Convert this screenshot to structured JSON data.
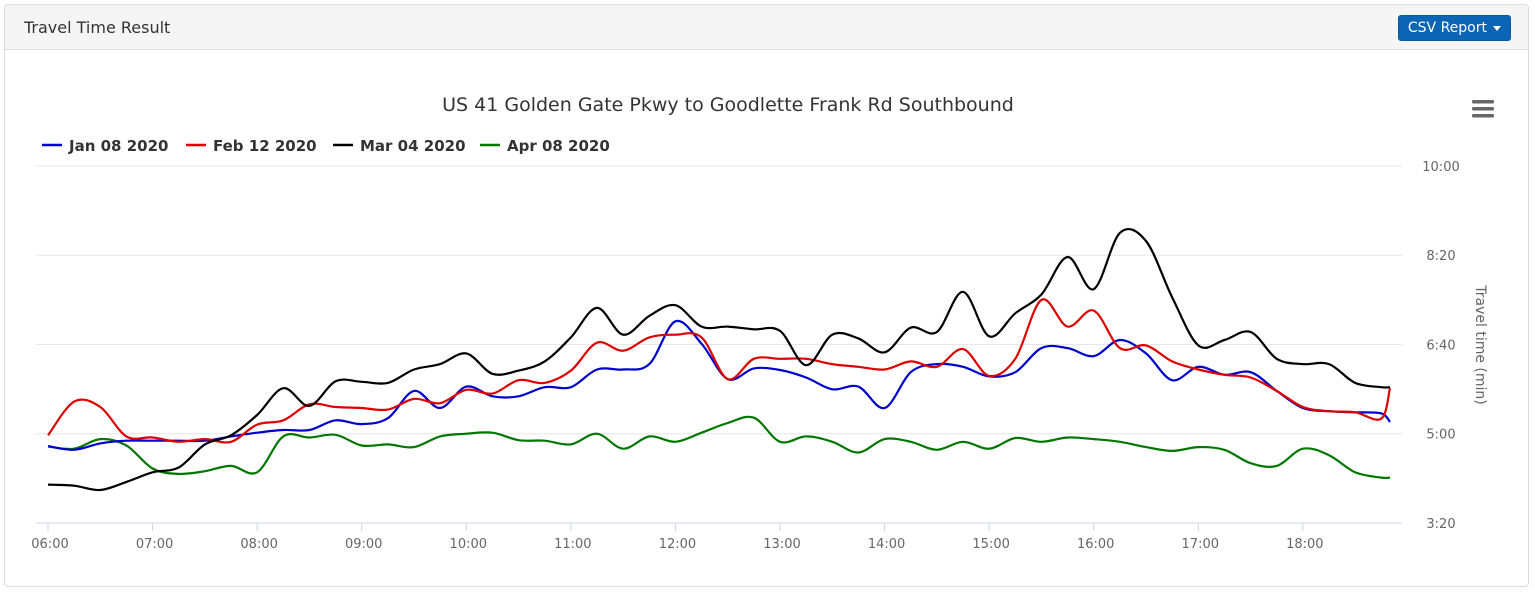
{
  "panel": {
    "title": "Travel Time Result",
    "csv_label": "CSV Report"
  },
  "chart_data": {
    "type": "line",
    "title": "US 41 Golden Gate Pkwy to Goodlette Frank Rd Southbound",
    "xlabel": "",
    "ylabel": "Travel time (min)",
    "x_ticks": [
      "06:00",
      "07:00",
      "08:00",
      "09:00",
      "10:00",
      "11:00",
      "12:00",
      "13:00",
      "14:00",
      "15:00",
      "16:00",
      "17:00",
      "18:00"
    ],
    "y_ticks": [
      "3:20",
      "5:00",
      "6:40",
      "8:20",
      "10:00"
    ],
    "y_range_minutes": [
      3.333,
      10.0
    ],
    "x_range": [
      "06:00",
      "18:50"
    ],
    "legend_position": "top-left",
    "grid": "horizontal",
    "series": [
      {
        "name": "Jan 08 2020",
        "color": "#0000cc",
        "x": [
          "06:00",
          "06:15",
          "06:30",
          "06:45",
          "07:00",
          "07:15",
          "07:30",
          "07:45",
          "08:00",
          "08:15",
          "08:30",
          "08:45",
          "09:00",
          "09:15",
          "09:30",
          "09:45",
          "10:00",
          "10:15",
          "10:30",
          "10:45",
          "11:00",
          "11:15",
          "11:30",
          "11:45",
          "12:00",
          "12:15",
          "12:30",
          "12:45",
          "13:00",
          "13:15",
          "13:30",
          "13:45",
          "14:00",
          "14:15",
          "14:30",
          "14:45",
          "15:00",
          "15:15",
          "15:30",
          "15:45",
          "16:00",
          "16:15",
          "16:30",
          "16:45",
          "17:00",
          "17:15",
          "17:30",
          "17:45",
          "18:00",
          "18:15",
          "18:30",
          "18:45",
          "18:50"
        ],
        "values": [
          4.77,
          4.7,
          4.82,
          4.87,
          4.87,
          4.87,
          4.87,
          4.95,
          5.02,
          5.07,
          5.07,
          5.25,
          5.18,
          5.29,
          5.8,
          5.48,
          5.88,
          5.7,
          5.7,
          5.87,
          5.87,
          6.2,
          6.2,
          6.3,
          7.1,
          6.68,
          6.02,
          6.22,
          6.19,
          6.05,
          5.83,
          5.88,
          5.48,
          6.15,
          6.3,
          6.25,
          6.07,
          6.15,
          6.6,
          6.6,
          6.45,
          6.75,
          6.5,
          6.0,
          6.25,
          6.1,
          6.15,
          5.8,
          5.48,
          5.42,
          5.4,
          5.38,
          5.22
        ]
      },
      {
        "name": "Feb 12 2020",
        "color": "#dd0000",
        "x": [
          "06:00",
          "06:15",
          "06:30",
          "06:45",
          "07:00",
          "07:15",
          "07:30",
          "07:45",
          "08:00",
          "08:15",
          "08:30",
          "08:45",
          "09:00",
          "09:15",
          "09:30",
          "09:45",
          "10:00",
          "10:15",
          "10:30",
          "10:45",
          "11:00",
          "11:15",
          "11:30",
          "11:45",
          "12:00",
          "12:15",
          "12:30",
          "12:45",
          "13:00",
          "13:15",
          "13:30",
          "13:45",
          "14:00",
          "14:15",
          "14:30",
          "14:45",
          "15:00",
          "15:15",
          "15:30",
          "15:45",
          "16:00",
          "16:15",
          "16:30",
          "16:45",
          "17:00",
          "17:15",
          "17:30",
          "17:45",
          "18:00",
          "18:15",
          "18:30",
          "18:45",
          "18:50"
        ],
        "values": [
          4.97,
          5.6,
          5.5,
          4.95,
          4.93,
          4.85,
          4.9,
          4.85,
          5.17,
          5.25,
          5.55,
          5.5,
          5.48,
          5.45,
          5.65,
          5.57,
          5.82,
          5.75,
          6.0,
          5.95,
          6.18,
          6.7,
          6.55,
          6.8,
          6.85,
          6.8,
          6.02,
          6.4,
          6.4,
          6.4,
          6.3,
          6.25,
          6.2,
          6.35,
          6.25,
          6.58,
          6.08,
          6.4,
          7.5,
          7.0,
          7.3,
          6.6,
          6.65,
          6.35,
          6.2,
          6.1,
          6.05,
          5.8,
          5.5,
          5.42,
          5.4,
          5.28,
          5.85
        ]
      },
      {
        "name": "Mar 04 2020",
        "color": "#000000",
        "x": [
          "06:00",
          "06:15",
          "06:30",
          "06:45",
          "07:00",
          "07:15",
          "07:30",
          "07:45",
          "08:00",
          "08:15",
          "08:30",
          "08:45",
          "09:00",
          "09:15",
          "09:30",
          "09:45",
          "10:00",
          "10:15",
          "10:30",
          "10:45",
          "11:00",
          "11:15",
          "11:30",
          "11:45",
          "12:00",
          "12:15",
          "12:30",
          "12:45",
          "13:00",
          "13:15",
          "13:30",
          "13:45",
          "14:00",
          "14:15",
          "14:30",
          "14:45",
          "15:00",
          "15:15",
          "15:30",
          "15:45",
          "16:00",
          "16:15",
          "16:30",
          "16:45",
          "17:00",
          "17:15",
          "17:30",
          "17:45",
          "18:00",
          "18:15",
          "18:30",
          "18:45",
          "18:50"
        ],
        "values": [
          4.05,
          4.03,
          3.95,
          4.1,
          4.28,
          4.37,
          4.8,
          4.97,
          5.35,
          5.85,
          5.52,
          5.98,
          5.97,
          5.95,
          6.2,
          6.3,
          6.5,
          6.12,
          6.18,
          6.35,
          6.8,
          7.35,
          6.85,
          7.2,
          7.4,
          7.0,
          7.0,
          6.95,
          6.92,
          6.28,
          6.85,
          6.78,
          6.52,
          6.98,
          6.9,
          7.65,
          6.82,
          7.25,
          7.6,
          8.3,
          7.7,
          8.75,
          8.6,
          7.55,
          6.65,
          6.75,
          6.9,
          6.4,
          6.3,
          6.3,
          5.95,
          5.87,
          5.87
        ]
      },
      {
        "name": "Apr 08 2020",
        "color": "#007700",
        "x": [
          "06:00",
          "06:15",
          "06:30",
          "06:45",
          "07:00",
          "07:15",
          "07:30",
          "07:45",
          "08:00",
          "08:15",
          "08:30",
          "08:45",
          "09:00",
          "09:15",
          "09:30",
          "09:45",
          "10:00",
          "10:15",
          "10:30",
          "10:45",
          "11:00",
          "11:15",
          "11:30",
          "11:45",
          "12:00",
          "12:15",
          "12:30",
          "12:45",
          "13:00",
          "13:15",
          "13:30",
          "13:45",
          "14:00",
          "14:15",
          "14:30",
          "14:45",
          "15:00",
          "15:15",
          "15:30",
          "15:45",
          "16:00",
          "16:15",
          "16:30",
          "16:45",
          "17:00",
          "17:15",
          "17:30",
          "17:45",
          "18:00",
          "18:15",
          "18:30",
          "18:45",
          "18:50"
        ],
        "values": [
          4.76,
          4.72,
          4.9,
          4.78,
          4.35,
          4.25,
          4.3,
          4.4,
          4.28,
          4.95,
          4.93,
          4.98,
          4.78,
          4.8,
          4.75,
          4.95,
          5.0,
          5.02,
          4.88,
          4.87,
          4.8,
          5.0,
          4.72,
          4.95,
          4.85,
          5.02,
          5.2,
          5.3,
          4.85,
          4.95,
          4.85,
          4.65,
          4.9,
          4.85,
          4.7,
          4.85,
          4.72,
          4.92,
          4.85,
          4.93,
          4.9,
          4.85,
          4.75,
          4.68,
          4.75,
          4.7,
          4.45,
          4.4,
          4.72,
          4.6,
          4.28,
          4.18,
          4.18
        ]
      }
    ]
  }
}
